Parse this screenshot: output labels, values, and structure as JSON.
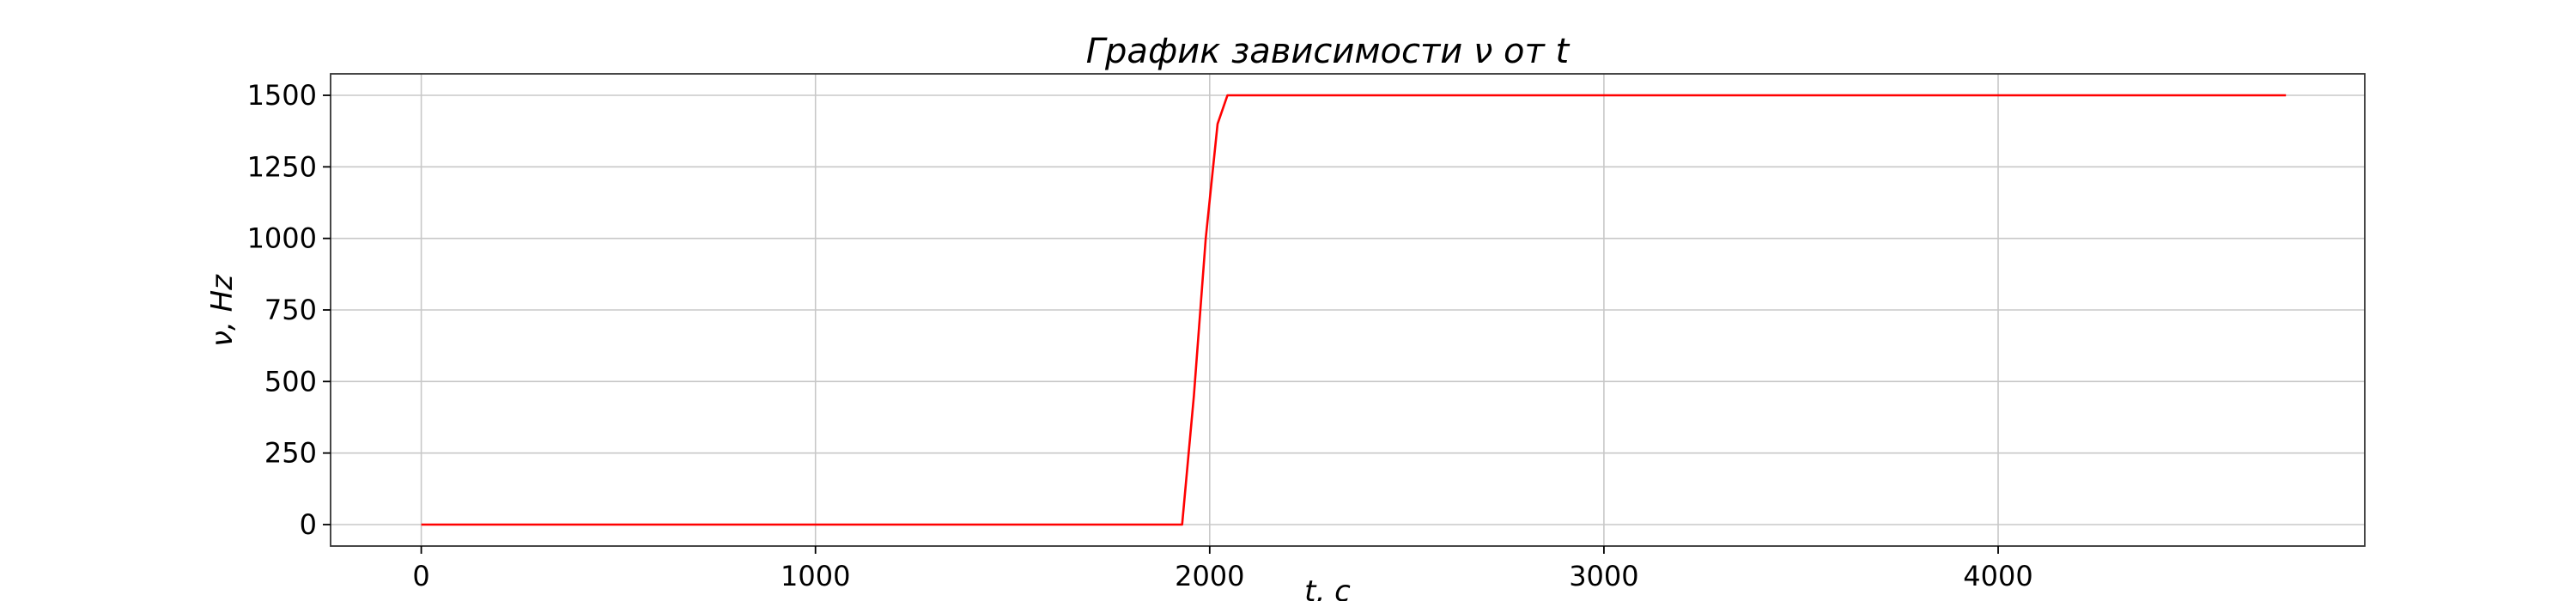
{
  "chart_data": {
    "type": "line",
    "title": "График зависимости ν от t",
    "xlabel": "t, c",
    "ylabel": "ν, Hz",
    "xlim": [
      -230,
      4930
    ],
    "ylim": [
      -75,
      1575
    ],
    "xticks": [
      0,
      1000,
      2000,
      3000,
      4000
    ],
    "yticks": [
      0,
      250,
      500,
      750,
      1000,
      1250,
      1500
    ],
    "grid": true,
    "series": [
      {
        "color": "#ff0000",
        "x": [
          0,
          1930,
          1960,
          1990,
          2020,
          2045,
          4730
        ],
        "y": [
          0,
          0,
          450,
          1000,
          1400,
          1500,
          1500
        ]
      }
    ]
  }
}
